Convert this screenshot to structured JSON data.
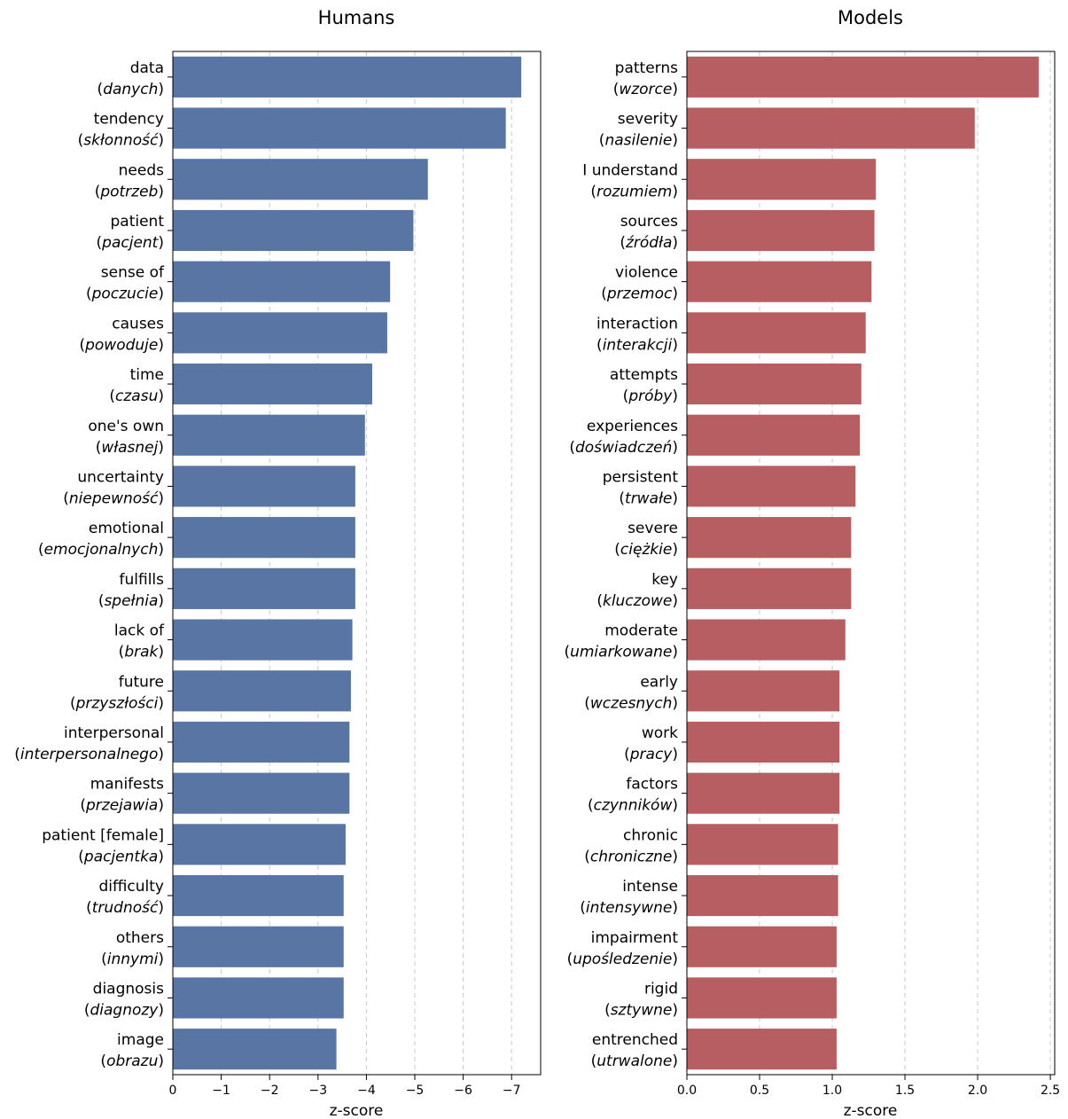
{
  "chart_data": [
    {
      "type": "bar",
      "orientation": "horizontal",
      "title": "Humans",
      "xlabel": "z-score",
      "xlim": [
        0,
        -7.6
      ],
      "xticks": [
        0,
        -1,
        -2,
        -3,
        -4,
        -5,
        -6,
        -7
      ],
      "xtick_labels": [
        "0",
        "−1",
        "−2",
        "−3",
        "−4",
        "−5",
        "−6",
        "−7"
      ],
      "grid": "x-dashed",
      "color": "#5975a4",
      "categories": [
        {
          "en": "data",
          "pl": "danych"
        },
        {
          "en": "tendency",
          "pl": "skłonność"
        },
        {
          "en": "needs",
          "pl": "potrzeb"
        },
        {
          "en": "patient",
          "pl": "pacjent"
        },
        {
          "en": "sense of",
          "pl": "poczucie"
        },
        {
          "en": "causes",
          "pl": "powoduje"
        },
        {
          "en": "time",
          "pl": "czasu"
        },
        {
          "en": "one's own",
          "pl": "własnej"
        },
        {
          "en": "uncertainty",
          "pl": "niepewność"
        },
        {
          "en": "emotional",
          "pl": "emocjonalnych"
        },
        {
          "en": "fulfills",
          "pl": "spełnia"
        },
        {
          "en": "lack of",
          "pl": "brak"
        },
        {
          "en": "future",
          "pl": "przyszłości"
        },
        {
          "en": "interpersonal",
          "pl": "interpersonalnego"
        },
        {
          "en": "manifests",
          "pl": "przejawia"
        },
        {
          "en": "patient [female]",
          "pl": "pacjentka"
        },
        {
          "en": "difficulty",
          "pl": "trudność"
        },
        {
          "en": "others",
          "pl": "innymi"
        },
        {
          "en": "diagnosis",
          "pl": "diagnozy"
        },
        {
          "en": "image",
          "pl": "obrazu"
        }
      ],
      "values": [
        -7.2,
        -6.88,
        -5.27,
        -4.97,
        -4.49,
        -4.43,
        -4.12,
        -3.97,
        -3.77,
        -3.77,
        -3.77,
        -3.71,
        -3.68,
        -3.65,
        -3.65,
        -3.57,
        -3.53,
        -3.53,
        -3.53,
        -3.38
      ]
    },
    {
      "type": "bar",
      "orientation": "horizontal",
      "title": "Models",
      "xlabel": "z-score",
      "xlim": [
        0,
        2.53
      ],
      "xticks": [
        0,
        0.5,
        1,
        1.5,
        2,
        2.5
      ],
      "xtick_labels": [
        "0.0",
        "0.5",
        "1.0",
        "1.5",
        "2.0",
        "2.5"
      ],
      "grid": "x-dashed",
      "color": "#b65e62",
      "categories": [
        {
          "en": "patterns",
          "pl": "wzorce"
        },
        {
          "en": "severity",
          "pl": "nasilenie"
        },
        {
          "en": "I understand",
          "pl": "rozumiem"
        },
        {
          "en": "sources",
          "pl": "źródła"
        },
        {
          "en": "violence",
          "pl": "przemoc"
        },
        {
          "en": "interaction",
          "pl": "interakcji"
        },
        {
          "en": "attempts",
          "pl": "próby"
        },
        {
          "en": "experiences",
          "pl": "doświadczeń"
        },
        {
          "en": "persistent",
          "pl": "trwałe"
        },
        {
          "en": "severe",
          "pl": "ciężkie"
        },
        {
          "en": "key",
          "pl": "kluczowe"
        },
        {
          "en": "moderate",
          "pl": "umiarkowane"
        },
        {
          "en": "early",
          "pl": "wczesnych"
        },
        {
          "en": "work",
          "pl": "pracy"
        },
        {
          "en": "factors",
          "pl": "czynników"
        },
        {
          "en": "chronic",
          "pl": "chroniczne"
        },
        {
          "en": "intense",
          "pl": "intensywne"
        },
        {
          "en": "impairment",
          "pl": "upośledzenie"
        },
        {
          "en": "rigid",
          "pl": "sztywne"
        },
        {
          "en": "entrenched",
          "pl": "utrwalone"
        }
      ],
      "values": [
        2.42,
        1.98,
        1.3,
        1.29,
        1.27,
        1.23,
        1.2,
        1.19,
        1.16,
        1.13,
        1.13,
        1.09,
        1.05,
        1.05,
        1.05,
        1.04,
        1.04,
        1.03,
        1.03,
        1.03
      ]
    }
  ]
}
